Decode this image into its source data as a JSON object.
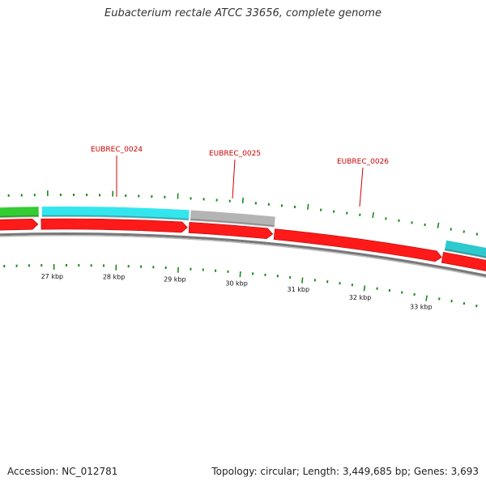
{
  "title": "Eubacterium rectale ATCC 33656, complete genome",
  "footer": {
    "accession_label": "Accession:",
    "accession": "NC_012781",
    "summary": "Topology: circular; Length: 3,449,685 bp; Genes: 3,693"
  },
  "colors": {
    "tick": "#1a8a1a",
    "cds": "#ff1a1a",
    "cds_edge": "#b30000",
    "feature_cyan": "#33e6ee",
    "feature_teal": "#2ec9cc",
    "feature_green": "#33cc33",
    "feature_gray": "#b4b4b4",
    "backbone": "#777777",
    "label": "#cc0000"
  },
  "scale": {
    "labels": [
      "27 kbp",
      "28 kbp",
      "29 kbp",
      "30 kbp",
      "31 kbp",
      "32 kbp",
      "33 kbp"
    ]
  },
  "gene_labels": [
    {
      "name": "EUBREC_0024"
    },
    {
      "name": "EUBREC_0025"
    },
    {
      "name": "EUBREC_0026"
    }
  ]
}
